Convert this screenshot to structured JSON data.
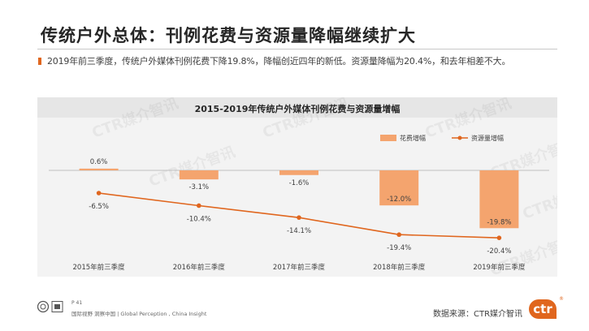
{
  "header": {
    "title": "传统户外总体：刊例花费与资源量降幅继续扩大",
    "bullet": "2019年前三季度，传统户外媒体刊例花费下降19.8%，降幅创近四年的新低。资源量降幅为20.4%，和去年相差不大。"
  },
  "chart_data": {
    "type": "bar+line",
    "title": "2015-2019年传统户外媒体刊例花费与资源量增幅",
    "categories": [
      "2015年前三季度",
      "2016年前三季度",
      "2017年前三季度",
      "2018年前三季度",
      "2019年前三季度"
    ],
    "series": [
      {
        "name": "花费增幅",
        "type": "bar",
        "color": "#f4a46e",
        "values": [
          0.6,
          -3.1,
          -1.6,
          -12.0,
          -19.8
        ],
        "labels": [
          "0.6%",
          "-3.1%",
          "-1.6%",
          "-12.0%",
          "-19.8%"
        ]
      },
      {
        "name": "资源量增幅",
        "type": "line",
        "color": "#e0661e",
        "values": [
          -6.5,
          -10.4,
          -14.1,
          -19.4,
          -20.4
        ],
        "labels": [
          "-6.5%",
          "-10.4%",
          "-14.1%",
          "-19.4%",
          "-20.4%"
        ]
      }
    ],
    "legend_position": "top-right",
    "watermark": "CTR媒介智讯"
  },
  "footer": {
    "page": "P 41",
    "slogan": "国际视野  洞察中国 | Global Perception , China Insight",
    "source": "数据来源：CTR媒介智讯",
    "logo": "ctr",
    "logo_mark": "®"
  },
  "colors": {
    "accent": "#e0661e",
    "bar": "#f4a46e",
    "panel": "#f3f3f3"
  }
}
